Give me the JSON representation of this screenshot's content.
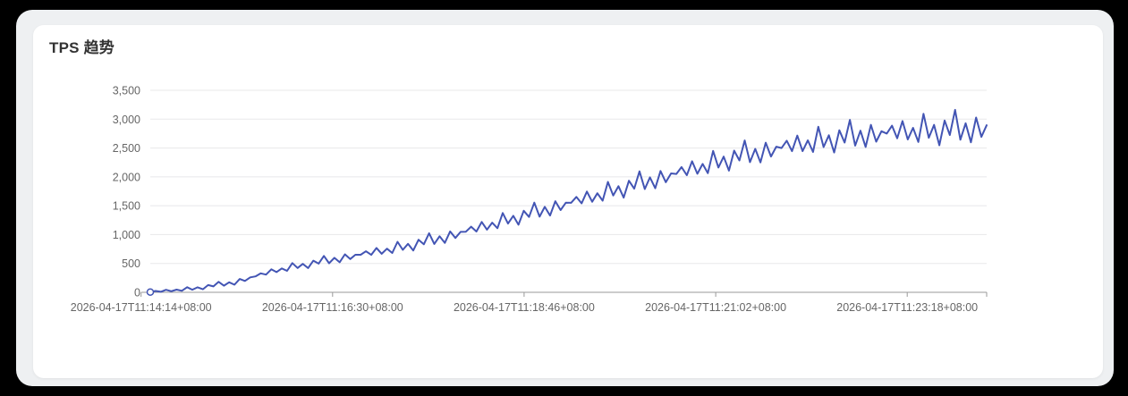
{
  "card": {
    "title": "TPS 趋势"
  },
  "colors": {
    "background": "#000000",
    "panel": "#eef0f2",
    "card": "#ffffff",
    "title": "#333333",
    "line": "#4355b4",
    "grid": "#e8e8ea",
    "axis": "#999999",
    "tick_label": "#666666",
    "marker_fill": "#ffffff"
  },
  "chart_data": {
    "type": "line",
    "title": "TPS 趋势",
    "xlabel": "",
    "ylabel": "",
    "legend": "none",
    "grid": true,
    "x_axis": {
      "type": "time",
      "tick_labels": [
        "2026-04-17T11:14:14+08:00",
        "2026-04-17T11:16:30+08:00",
        "2026-04-17T11:18:46+08:00",
        "2026-04-17T11:21:02+08:00",
        "2026-04-17T11:23:18+08:00"
      ]
    },
    "y_axis": {
      "min": 0,
      "max": 3500,
      "ticks": [
        {
          "label": "0",
          "value": 0
        },
        {
          "label": "500",
          "value": 500
        },
        {
          "label": "1,000",
          "value": 1000
        },
        {
          "label": "1,500",
          "value": 1500
        },
        {
          "label": "2,000",
          "value": 2000
        },
        {
          "label": "2,500",
          "value": 2500
        },
        {
          "label": "3,000",
          "value": 3000
        },
        {
          "label": "3,500",
          "value": 3500
        }
      ]
    },
    "series": [
      {
        "name": "TPS",
        "start_marker": true,
        "values": [
          5,
          23,
          10,
          44,
          19,
          46,
          26,
          89,
          45,
          87,
          53,
          125,
          102,
          181,
          115,
          173,
          132,
          230,
          197,
          259,
          275,
          329,
          306,
          398,
          350,
          413,
          371,
          506,
          421,
          493,
          419,
          548,
          497,
          631,
          504,
          598,
          520,
          658,
          576,
          650,
          650,
          711,
          649,
          768,
          668,
          755,
          681,
          875,
          736,
          840,
          725,
          910,
          831,
          1023,
          838,
          971,
          857,
          1055,
          941,
          1047,
          1050,
          1136,
          1053,
          1219,
          1086,
          1207,
          1110,
          1374,
          1191,
          1326,
          1171,
          1412,
          1306,
          1553,
          1310,
          1480,
          1330,
          1578,
          1425,
          1554,
          1550,
          1653,
          1541,
          1745,
          1569,
          1716,
          1587,
          1912,
          1677,
          1839,
          1640,
          1933,
          1795,
          2095,
          1789,
          1992,
          1803,
          2101,
          1908,
          2060,
          2050,
          2170,
          2028,
          2270,
          2053,
          2224,
          2064,
          2450,
          2162,
          2351,
          2108,
          2454,
          2285,
          2631,
          2255,
          2486,
          2250,
          2593,
          2353,
          2523,
          2500,
          2627,
          2446,
          2715,
          2446,
          2633,
          2431,
          2868,
          2517,
          2721,
          2422,
          2808,
          2594,
          2987,
          2542,
          2800,
          2518,
          2900,
          2609,
          2790,
          2750,
          2886,
          2668,
          2968,
          2649,
          2850,
          2605,
          3092,
          2678,
          2900,
          2548,
          2977,
          2724,
          3161,
          2644,
          2928,
          2598,
          3027,
          2693,
          2894
        ]
      }
    ]
  }
}
